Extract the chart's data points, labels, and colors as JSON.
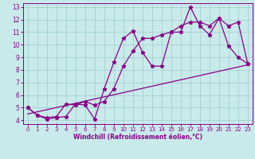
{
  "xlabel": "Windchill (Refroidissement éolien,°C)",
  "xlim": [
    -0.5,
    23.5
  ],
  "ylim": [
    3.7,
    13.3
  ],
  "xticks": [
    0,
    1,
    2,
    3,
    4,
    5,
    6,
    7,
    8,
    9,
    10,
    11,
    12,
    13,
    14,
    15,
    16,
    17,
    18,
    19,
    20,
    21,
    22,
    23
  ],
  "yticks": [
    4,
    5,
    6,
    7,
    8,
    9,
    10,
    11,
    12,
    13
  ],
  "background_color": "#c8eaea",
  "grid_color": "#a0cccc",
  "line_color": "#880088",
  "line1_x": [
    0,
    1,
    2,
    3,
    4,
    5,
    6,
    7,
    8,
    9,
    10,
    11,
    12,
    13,
    14,
    15,
    16,
    17,
    18,
    19,
    20,
    21,
    22,
    23
  ],
  "line1_y": [
    5.0,
    4.4,
    4.1,
    4.2,
    4.3,
    5.3,
    5.2,
    4.1,
    6.5,
    8.6,
    10.5,
    11.1,
    9.4,
    8.3,
    8.3,
    11.0,
    11.0,
    13.0,
    11.5,
    10.8,
    12.1,
    9.9,
    9.0,
    8.5
  ],
  "line2_x": [
    0,
    1,
    2,
    3,
    4,
    5,
    6,
    7,
    8,
    9,
    10,
    11,
    12,
    13,
    14,
    15,
    16,
    17,
    18,
    19,
    20,
    21,
    22,
    23
  ],
  "line2_y": [
    5.0,
    4.4,
    4.2,
    4.3,
    5.3,
    5.2,
    5.5,
    5.2,
    5.5,
    6.5,
    8.3,
    9.5,
    10.5,
    10.5,
    10.8,
    11.0,
    11.5,
    11.8,
    11.8,
    11.5,
    12.1,
    11.5,
    11.8,
    8.5
  ],
  "line3_x": [
    0,
    23
  ],
  "line3_y": [
    4.5,
    8.4
  ]
}
